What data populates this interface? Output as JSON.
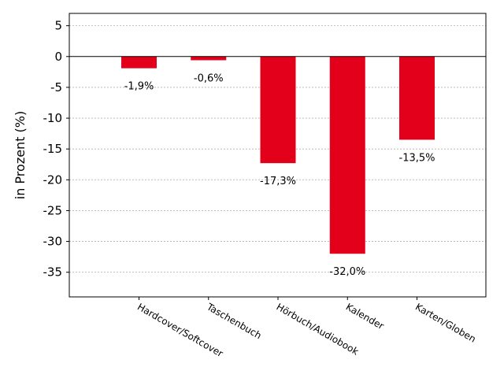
{
  "chart_data": {
    "type": "bar",
    "categories": [
      "Hardcover/Softcover",
      "Taschenbuch",
      "Hörbuch/Audiobook",
      "Kalender",
      "Karten/Globen"
    ],
    "values": [
      -1.9,
      -0.6,
      -17.3,
      -32.0,
      -13.5
    ],
    "data_labels": [
      "-1,9%",
      "-0,6%",
      "-17,3%",
      "-32,0%",
      "-13,5%"
    ],
    "title": "",
    "xlabel": "",
    "ylabel": "in Prozent (%)",
    "ylim": [
      -39,
      7
    ],
    "yticks": [
      5,
      0,
      -5,
      -10,
      -15,
      -20,
      -25,
      -30,
      -35
    ],
    "grid": true,
    "bar_color": "#e2001a"
  }
}
